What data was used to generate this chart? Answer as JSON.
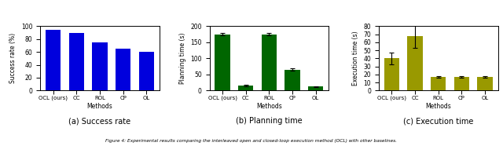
{
  "categories": [
    "OCL (ours)",
    "CC",
    "ROL",
    "CP",
    "OL"
  ],
  "xlabel": "Methods",
  "subplot_a": {
    "title": "(a) Success rate",
    "ylabel": "Success rate (%)",
    "values": [
      95,
      90,
      75,
      65,
      60
    ],
    "yerr": [
      0,
      0,
      0,
      0,
      0
    ],
    "color": "#0000dd",
    "ylim": [
      0,
      100
    ],
    "yticks": [
      0,
      20,
      40,
      60,
      80,
      100
    ]
  },
  "subplot_b": {
    "title": "(b) Planning time",
    "ylabel": "Planning time (s)",
    "values": [
      175,
      15,
      175,
      65,
      12
    ],
    "yerr": [
      3,
      2,
      3,
      3,
      1.5
    ],
    "color": "#006600",
    "ylim": [
      0,
      200
    ],
    "yticks": [
      0,
      50,
      100,
      150,
      200
    ]
  },
  "subplot_c": {
    "title": "(c) Execution time",
    "ylabel": "Execution time (s)",
    "values": [
      40,
      68,
      17,
      17,
      17
    ],
    "yerr": [
      7,
      15,
      1,
      1,
      1
    ],
    "color": "#999900",
    "ylim": [
      0,
      80
    ],
    "yticks": [
      0,
      10,
      20,
      30,
      40,
      50,
      60,
      70,
      80
    ]
  },
  "caption": "Figure 4: Experimental results comparing the interleaved open and closed-loop execution method (OCL) with other baselines.",
  "fig_width": 6.4,
  "fig_height": 1.86,
  "dpi": 100
}
